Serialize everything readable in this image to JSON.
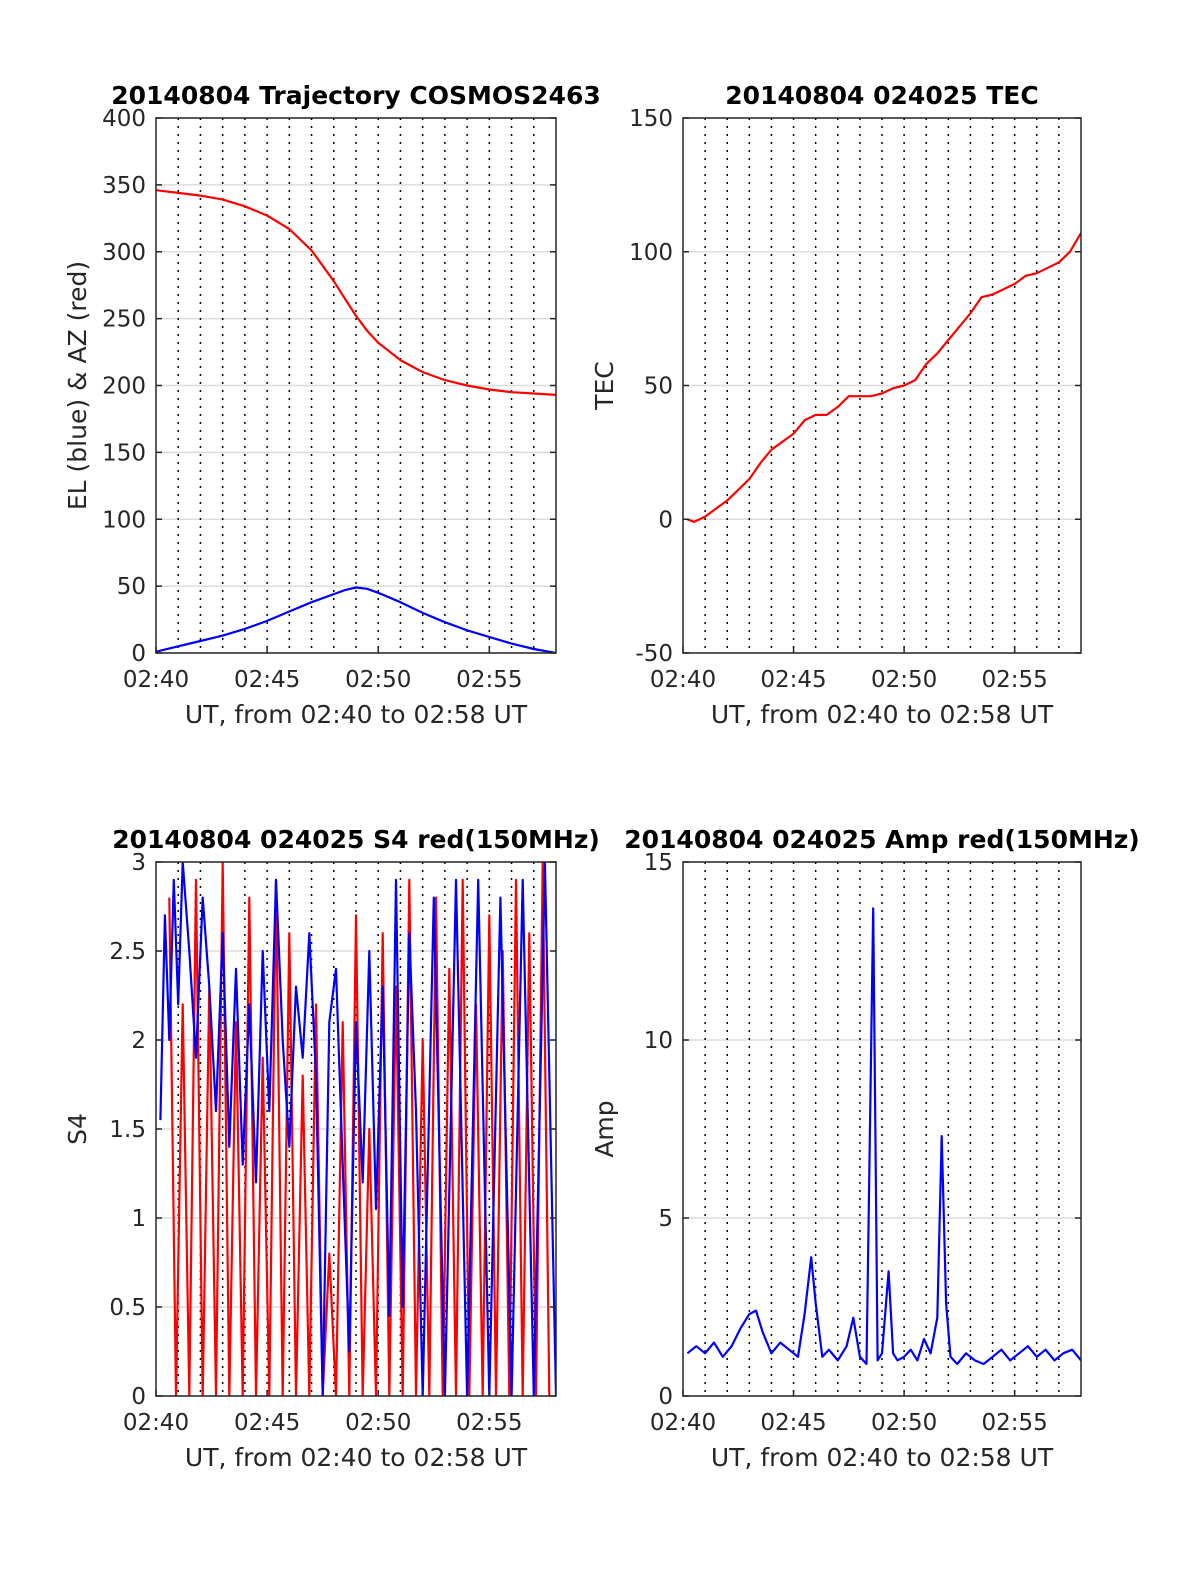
{
  "chart_data": [
    {
      "type": "line",
      "title": "20140804 Trajectory COSMOS2463",
      "xlabel": "UT, from 02:40 to 02:58 UT",
      "ylabel": "EL (blue) & AZ (red)",
      "x_unit": "minutes after 02:40 UT",
      "xlim": [
        0,
        18
      ],
      "ylim": [
        0,
        400
      ],
      "xticks": [
        0,
        5,
        10,
        15
      ],
      "xtick_labels": [
        "02:40",
        "02:45",
        "02:50",
        "02:55"
      ],
      "yticks": [
        0,
        50,
        100,
        150,
        200,
        250,
        300,
        350,
        400
      ],
      "ytick_labels": [
        "0",
        "50",
        "100",
        "150",
        "200",
        "250",
        "300",
        "350",
        "400"
      ],
      "grid": true,
      "series": [
        {
          "color": "#ff0000",
          "x": [
            0,
            1,
            2,
            3,
            4,
            5,
            6,
            7,
            8,
            8.5,
            9,
            9.5,
            10,
            11,
            12,
            13,
            14,
            15,
            16,
            17,
            18
          ],
          "values": [
            346,
            344,
            342,
            339,
            334,
            327,
            317,
            301,
            278,
            265,
            252,
            241,
            232,
            219,
            210,
            204,
            200,
            197,
            195,
            194,
            193
          ]
        },
        {
          "color": "#0000ff",
          "x": [
            0,
            1,
            2,
            3,
            4,
            5,
            6,
            7,
            8,
            8.5,
            9,
            9.5,
            10,
            11,
            12,
            13,
            14,
            15,
            16,
            17,
            18
          ],
          "values": [
            1,
            5,
            9,
            13,
            18,
            24,
            31,
            38,
            44,
            47,
            49,
            48,
            45,
            38,
            30,
            23,
            17,
            12,
            7,
            3,
            0
          ]
        }
      ]
    },
    {
      "type": "line",
      "title": "20140804 024025 TEC",
      "xlabel": "UT, from 02:40 to 02:58 UT",
      "ylabel": "TEC",
      "xlim": [
        0,
        18
      ],
      "ylim": [
        -50,
        150
      ],
      "xticks": [
        0,
        5,
        10,
        15
      ],
      "xtick_labels": [
        "02:40",
        "02:45",
        "02:50",
        "02:55"
      ],
      "yticks": [
        -50,
        0,
        50,
        100,
        150
      ],
      "ytick_labels": [
        "-50",
        "0",
        "50",
        "100",
        "150"
      ],
      "grid": true,
      "series": [
        {
          "color": "#ff0000",
          "x": [
            0.2,
            0.5,
            1,
            1.5,
            2,
            2.5,
            3,
            3.5,
            4,
            4.5,
            5,
            5.5,
            6,
            6.5,
            7,
            7.5,
            8,
            8.5,
            9,
            9.5,
            10,
            10.5,
            11,
            11.5,
            12,
            12.5,
            13,
            13.5,
            14,
            14.5,
            15,
            15.5,
            16,
            16.5,
            17,
            17.5,
            18
          ],
          "values": [
            0,
            -1,
            1,
            4,
            7,
            11,
            15,
            21,
            26,
            29,
            32,
            37,
            39,
            39,
            42,
            46,
            46,
            46,
            47,
            49,
            50,
            52,
            58,
            62,
            67,
            72,
            77,
            83,
            84,
            86,
            88,
            91,
            92,
            94,
            96,
            100,
            107
          ]
        }
      ]
    },
    {
      "type": "line",
      "title": "20140804 024025 S4 red(150MHz)",
      "xlabel": "UT, from 02:40 to 02:58 UT",
      "ylabel": "S4",
      "xlim": [
        0,
        18
      ],
      "ylim": [
        0,
        3
      ],
      "xticks": [
        0,
        5,
        10,
        15
      ],
      "xtick_labels": [
        "02:40",
        "02:45",
        "02:50",
        "02:55"
      ],
      "yticks": [
        0,
        0.5,
        1,
        1.5,
        2,
        2.5,
        3
      ],
      "ytick_labels": [
        "0",
        "0.5",
        "1",
        "1.5",
        "2",
        "2.5",
        "3"
      ],
      "grid": true,
      "series": [
        {
          "color": "#ff0000",
          "x": [
            0.6,
            0.9,
            1.2,
            1.5,
            1.8,
            2.1,
            2.4,
            2.7,
            3.0,
            3.3,
            3.6,
            3.9,
            4.2,
            4.5,
            4.8,
            5.1,
            5.4,
            5.7,
            6.0,
            6.3,
            6.6,
            6.9,
            7.2,
            7.5,
            7.8,
            8.1,
            8.4,
            8.7,
            9.0,
            9.3,
            9.6,
            9.9,
            10.2,
            10.5,
            10.8,
            11.1,
            11.4,
            11.7,
            12.0,
            12.3,
            12.6,
            12.9,
            13.2,
            13.5,
            13.8,
            14.1,
            14.4,
            14.7,
            15.0,
            15.3,
            15.6,
            15.9,
            16.2,
            16.5,
            16.8,
            17.1,
            17.4,
            17.7
          ],
          "values": [
            2.8,
            0,
            2.2,
            0,
            2.9,
            0,
            2.3,
            0,
            3.0,
            0,
            2.1,
            0,
            2.8,
            0,
            1.9,
            0,
            2.9,
            0,
            2.6,
            0,
            1.8,
            0,
            2.2,
            0,
            0.8,
            0,
            2.1,
            0,
            2.7,
            0,
            1.5,
            0,
            2.6,
            0,
            2.3,
            0,
            2.9,
            0,
            2.0,
            0,
            2.8,
            0,
            2.4,
            0,
            2.9,
            0,
            2.2,
            0,
            2.7,
            0,
            2.5,
            0,
            2.9,
            0,
            2.6,
            0,
            3.0,
            0
          ]
        },
        {
          "color": "#0000ff",
          "x": [
            0.2,
            0.4,
            0.6,
            0.8,
            1.0,
            1.2,
            1.5,
            1.8,
            2.1,
            2.4,
            2.7,
            3.0,
            3.3,
            3.6,
            3.9,
            4.2,
            4.5,
            4.8,
            5.1,
            5.4,
            5.7,
            6.0,
            6.3,
            6.6,
            6.9,
            7.2,
            7.5,
            7.8,
            8.1,
            8.4,
            8.7,
            9.0,
            9.3,
            9.6,
            9.9,
            10.2,
            10.5,
            10.8,
            11.1,
            11.4,
            11.7,
            12.0,
            12.5,
            13.0,
            13.5,
            14.0,
            14.5,
            15.0,
            15.5,
            16.0,
            16.5,
            17.0,
            17.5,
            18.0
          ],
          "values": [
            1.55,
            2.7,
            2.0,
            2.9,
            2.2,
            3.0,
            2.5,
            1.9,
            2.8,
            2.3,
            1.6,
            2.6,
            1.4,
            2.4,
            1.3,
            2.2,
            1.2,
            2.5,
            1.6,
            2.9,
            2.0,
            1.4,
            2.3,
            1.9,
            2.6,
            1.8,
            0.0,
            2.1,
            2.4,
            1.3,
            0.25,
            2.1,
            1.2,
            2.5,
            1.05,
            2.3,
            0.45,
            2.9,
            0.5,
            2.6,
            1.6,
            0.0,
            2.8,
            0.0,
            2.9,
            0.0,
            2.9,
            0.0,
            2.8,
            0.0,
            2.9,
            0.0,
            3.0,
            0.0
          ]
        }
      ]
    },
    {
      "type": "line",
      "title": "20140804 024025 Amp red(150MHz)",
      "xlabel": "UT, from 02:40 to 02:58 UT",
      "ylabel": "Amp",
      "xlim": [
        0,
        18
      ],
      "ylim": [
        0,
        15
      ],
      "xticks": [
        0,
        5,
        10,
        15
      ],
      "xtick_labels": [
        "02:40",
        "02:45",
        "02:50",
        "02:55"
      ],
      "yticks": [
        0,
        5,
        10,
        15
      ],
      "ytick_labels": [
        "0",
        "5",
        "10",
        "15"
      ],
      "grid": true,
      "series": [
        {
          "color": "#0000ff",
          "x": [
            0.2,
            0.6,
            1.0,
            1.4,
            1.8,
            2.2,
            2.6,
            3.0,
            3.3,
            3.6,
            4.0,
            4.4,
            4.8,
            5.2,
            5.5,
            5.8,
            6.0,
            6.3,
            6.6,
            7.0,
            7.4,
            7.7,
            8.0,
            8.3,
            8.6,
            8.8,
            9.0,
            9.3,
            9.5,
            9.7,
            10.0,
            10.3,
            10.6,
            10.9,
            11.2,
            11.5,
            11.7,
            11.9,
            12.1,
            12.4,
            12.8,
            13.2,
            13.6,
            14.0,
            14.4,
            14.8,
            15.2,
            15.6,
            16.0,
            16.4,
            16.8,
            17.2,
            17.6,
            18.0
          ],
          "values": [
            1.2,
            1.4,
            1.2,
            1.5,
            1.1,
            1.4,
            1.9,
            2.3,
            2.4,
            1.8,
            1.2,
            1.5,
            1.3,
            1.1,
            2.3,
            3.9,
            2.6,
            1.1,
            1.3,
            1.0,
            1.4,
            2.2,
            1.1,
            0.9,
            13.7,
            1.0,
            1.2,
            3.5,
            1.2,
            1.0,
            1.1,
            1.3,
            1.0,
            1.6,
            1.2,
            2.2,
            7.3,
            2.6,
            1.1,
            0.9,
            1.2,
            1.0,
            0.9,
            1.1,
            1.3,
            1.0,
            1.2,
            1.4,
            1.1,
            1.3,
            1.0,
            1.2,
            1.3,
            1.0
          ]
        }
      ]
    }
  ]
}
